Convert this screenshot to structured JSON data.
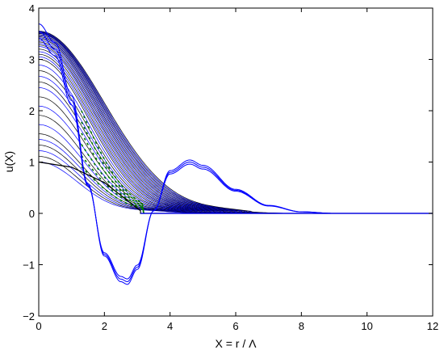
{
  "chart_data": {
    "type": "line",
    "xlabel": "X = r / Λ",
    "ylabel": "u(X)",
    "xlim": [
      0,
      12
    ],
    "ylim": [
      -2,
      4
    ],
    "xticks": [
      0,
      2,
      4,
      6,
      8,
      10,
      12
    ],
    "yticks": [
      -2,
      -1,
      0,
      1,
      2,
      3,
      4
    ],
    "xtick_labels": [
      "0",
      "2",
      "4",
      "6",
      "8",
      "10",
      "12"
    ],
    "ytick_labels": [
      "−2",
      "−1",
      "0",
      "1",
      "2",
      "3",
      "4"
    ],
    "grid": false,
    "colors": {
      "curves": "#0000ff",
      "dark": "#000000",
      "green": "#007a00"
    },
    "series": [
      {
        "style": "family of decaying profiles",
        "x": [
          0,
          0.5,
          1.0,
          1.5,
          2.0,
          2.5,
          3.0,
          3.5,
          4.0,
          5.0,
          6.0,
          8.0,
          10.0,
          12.0
        ],
        "u0": [
          1.0,
          1.55,
          2.45,
          3.0,
          3.25,
          3.4,
          3.5,
          3.55
        ],
        "decay_end": [
          3.1,
          3.35,
          3.75,
          4.1,
          4.45,
          4.8,
          5.1,
          5.2
        ]
      },
      {
        "style": "oscillating solution",
        "x": [
          0,
          0.5,
          1.0,
          1.5,
          2.0,
          2.5,
          2.7,
          3.0,
          3.5,
          4.0,
          4.6,
          5.0,
          6.0,
          7.0,
          8.0,
          9.0,
          10.0,
          11.0,
          12.0
        ],
        "y": [
          3.55,
          3.2,
          2.2,
          0.55,
          -0.8,
          -1.28,
          -1.33,
          -1.05,
          0.05,
          0.8,
          1.0,
          0.9,
          0.45,
          0.15,
          0.03,
          0.0,
          0.0,
          0.0,
          0.0
        ]
      },
      {
        "style": "step profile",
        "x": [
          0,
          1.0,
          2.0,
          3.1,
          3.1,
          12.0
        ],
        "y": [
          1.0,
          0.9,
          0.6,
          0.05,
          0.0,
          0.0
        ]
      }
    ]
  }
}
